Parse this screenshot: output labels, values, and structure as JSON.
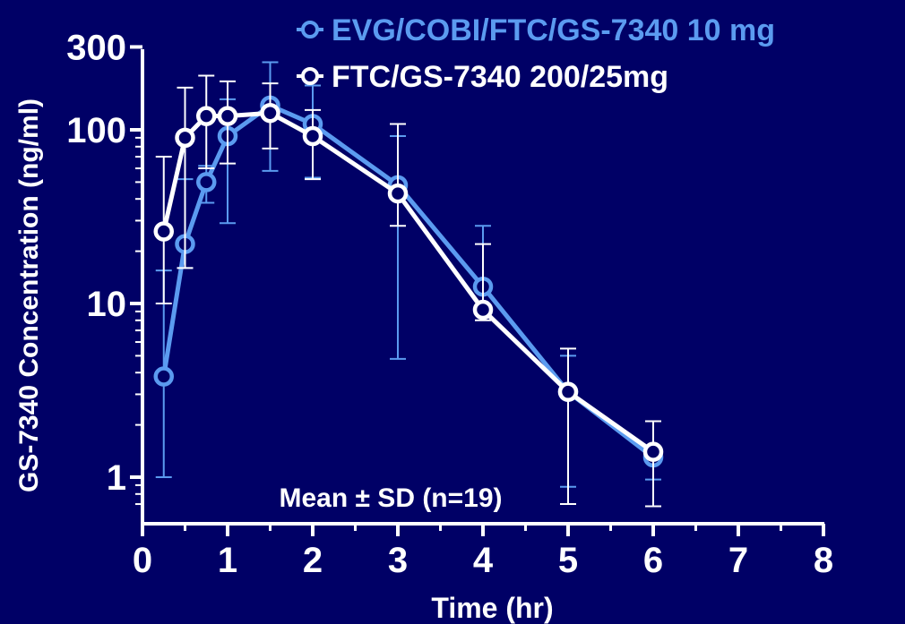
{
  "chart_data": {
    "type": "line",
    "xlabel": "Time (hr)",
    "ylabel": "GS-7340 Concentration (ng/ml)",
    "xlim": [
      0,
      8
    ],
    "ylim": [
      0.6,
      300
    ],
    "y_scale": "log",
    "x_ticks": [
      "0",
      "1",
      "2",
      "3",
      "4",
      "5",
      "6",
      "7",
      "8"
    ],
    "y_ticks": [
      "1",
      "10",
      "100",
      "300"
    ],
    "annotation": "Mean ± SD (n=19)",
    "legend_position": "top",
    "series": [
      {
        "name": "EVG/COBI/FTC/GS-7340 10 mg",
        "color": "#5b9bf0",
        "x": [
          0.25,
          0.5,
          0.75,
          1,
          1.5,
          2,
          3,
          4,
          5,
          6
        ],
        "y": [
          3.8,
          22,
          50,
          92,
          138,
          108,
          48,
          12.5,
          3.1,
          1.3
        ],
        "err_upper": [
          15.5,
          52,
          62,
          150,
          245,
          180,
          92,
          28,
          5,
          2.1
        ],
        "err_lower": [
          1,
          16,
          38,
          29,
          58,
          53,
          4.8,
          9.3,
          0.88,
          0.97
        ]
      },
      {
        "name": "FTC/GS-7340 200/25mg",
        "color": "#ffffff",
        "x": [
          0.25,
          0.5,
          0.75,
          1,
          1.5,
          2,
          3,
          4,
          5,
          6
        ],
        "y": [
          26,
          90,
          120,
          120,
          125,
          92,
          43,
          9.2,
          3.1,
          1.4
        ],
        "err_upper": [
          70,
          175,
          205,
          190,
          185,
          130,
          108,
          22,
          5.5,
          2.1
        ],
        "err_lower": [
          10,
          16,
          60,
          64,
          78,
          52,
          28,
          8,
          0.7,
          0.68
        ]
      }
    ]
  }
}
